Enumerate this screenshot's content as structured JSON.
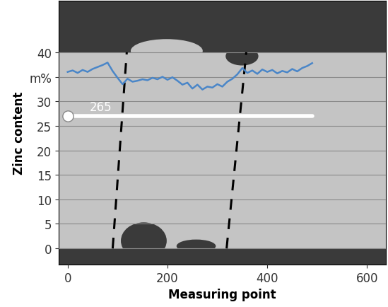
{
  "chart_data": {
    "type": "line",
    "x_label": "Measuring point",
    "y_label": "Zinc content",
    "x": [
      0,
      10,
      20,
      30,
      40,
      50,
      60,
      70,
      80,
      90,
      100,
      110,
      120,
      130,
      140,
      150,
      160,
      170,
      180,
      190,
      200,
      210,
      220,
      230,
      240,
      250,
      260,
      270,
      280,
      290,
      300,
      310,
      320,
      330,
      340,
      350,
      360,
      370,
      380,
      390,
      400,
      410,
      420,
      430,
      440,
      450,
      460,
      470,
      480,
      490
    ],
    "values": [
      36.0,
      36.3,
      35.8,
      36.4,
      36.0,
      36.6,
      37.0,
      37.4,
      37.9,
      36.2,
      34.8,
      33.5,
      34.6,
      34.0,
      34.2,
      34.5,
      34.3,
      34.8,
      34.5,
      35.0,
      34.4,
      34.9,
      34.2,
      33.4,
      33.8,
      32.6,
      33.4,
      32.4,
      33.0,
      32.8,
      33.5,
      33.0,
      34.0,
      34.6,
      35.5,
      36.8,
      35.8,
      36.3,
      35.6,
      36.5,
      36.0,
      36.4,
      35.7,
      36.2,
      35.9,
      36.6,
      36.1,
      36.8,
      37.2,
      37.8
    ],
    "color": "#4a86c8",
    "xlim": [
      -18,
      638
    ],
    "ylim": [
      -3.3,
      50.5
    ],
    "xticks": [
      0,
      200,
      400,
      600
    ],
    "yticks": [
      0,
      5,
      10,
      15,
      20,
      25,
      30,
      {
        "value": 35,
        "label": "m%"
      },
      40
    ],
    "grid": true,
    "reference_line": {
      "y": 27,
      "x": [
        0,
        490
      ],
      "color": "#ffffff"
    },
    "annotations": [
      {
        "text": "265",
        "x": 0,
        "y": 27
      }
    ]
  }
}
